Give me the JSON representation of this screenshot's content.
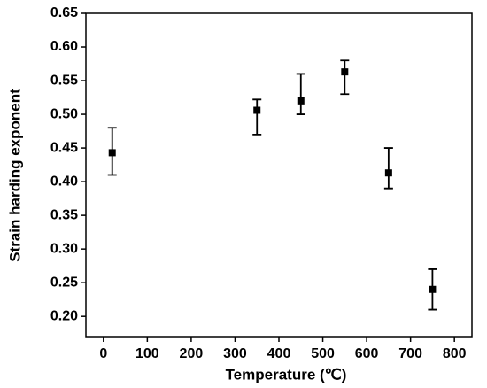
{
  "chart_data": {
    "type": "scatter",
    "x_label": "Temperature (℃)",
    "y_label": "Strain harding exponent",
    "x": [
      20,
      350,
      450,
      550,
      650,
      750
    ],
    "values": [
      0.443,
      0.506,
      0.52,
      0.563,
      0.413,
      0.24
    ],
    "error_low": [
      0.41,
      0.47,
      0.5,
      0.53,
      0.39,
      0.21
    ],
    "error_high": [
      0.48,
      0.522,
      0.56,
      0.58,
      0.45,
      0.27
    ],
    "color": "#000000",
    "xlim": [
      -40,
      840
    ],
    "xticks": [
      0,
      100,
      200,
      300,
      400,
      500,
      600,
      700,
      800
    ],
    "ylim": [
      0.17,
      0.65
    ],
    "yticks": [
      {
        "value": 0.2,
        "label": "0.20"
      },
      {
        "value": 0.25,
        "label": "0.25"
      },
      {
        "value": 0.3,
        "label": "0.30"
      },
      {
        "value": 0.35,
        "label": "0.35"
      },
      {
        "value": 0.4,
        "label": "0.40"
      },
      {
        "value": 0.45,
        "label": "0.45"
      },
      {
        "value": 0.5,
        "label": "0.50"
      },
      {
        "value": 0.55,
        "label": "0.55"
      },
      {
        "value": 0.6,
        "label": "0.60"
      },
      {
        "value": 0.65,
        "label": "0.65"
      }
    ]
  }
}
